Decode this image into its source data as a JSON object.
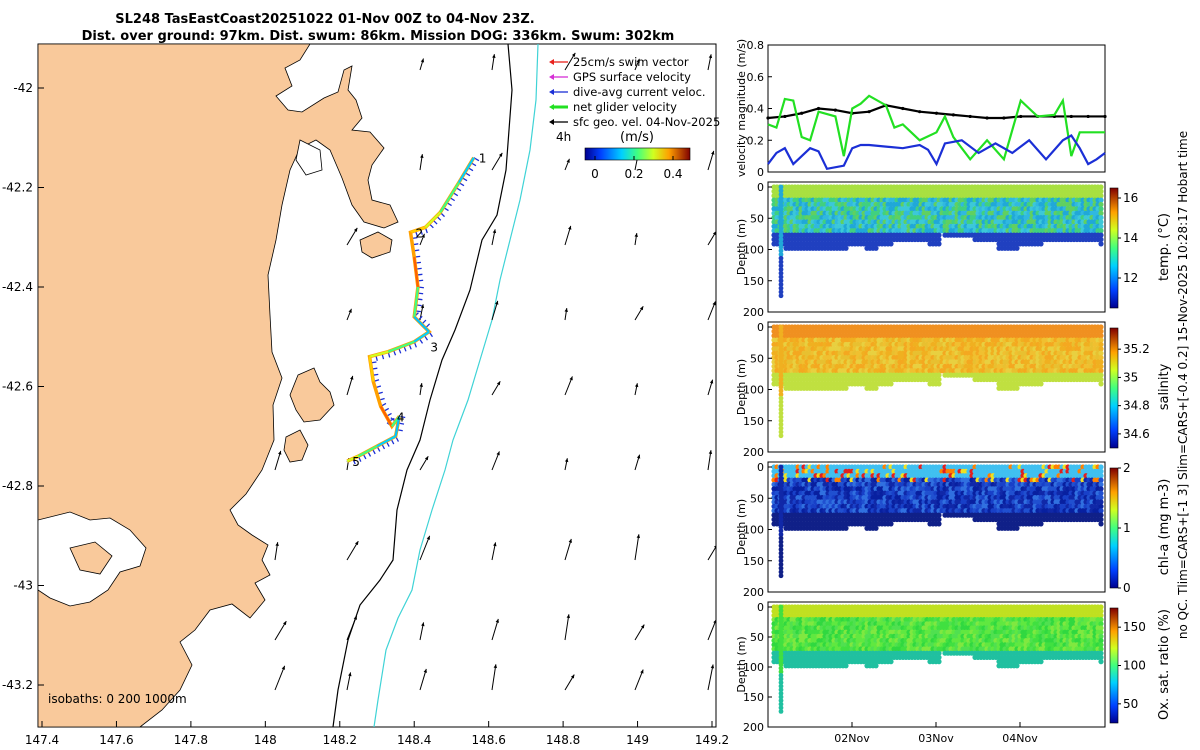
{
  "title_line1": "SL248 TasEastCoast20251022 01-Nov 00Z to 04-Nov 23Z.",
  "title_line2": "Dist. over ground: 97km. Dist. swum: 86km. Mission DOG: 336km. Swum: 302km",
  "side_note": "no QC. Tlim=CARS+[-1 3] Slim=CARS+[-0.4 0.2] 15-Nov-2025 10:28:17 Hobart time",
  "colors": {
    "land": "#f9c99b",
    "isobath_200": "#000000",
    "isobath_1000": "#3fd3d6",
    "swim_vector": "#e8221d",
    "gps_velocity": "#d630d6",
    "dive_current": "#1b2fd6",
    "net_velocity": "#22e022",
    "sfc_geo": "#000000"
  },
  "map": {
    "xticks": [
      "147.4",
      "147.6",
      "147.8",
      "148",
      "148.2",
      "148.4",
      "148.6",
      "148.8",
      "149",
      "149.2"
    ],
    "yticks": [
      "-42",
      "-42.2",
      "-42.4",
      "-42.6",
      "-42.8",
      "-43",
      "-43.2"
    ],
    "isobaths_label": "isobaths: 0   200  1000m",
    "time_step_label": "4h",
    "colorbar_unit": "(m/s)",
    "colorbar_ticks": [
      "0",
      "0.2",
      "0.4"
    ],
    "legend": [
      {
        "label": "25cm/s swim vector",
        "color": "#e8221d"
      },
      {
        "label": "GPS surface velocity",
        "color": "#d630d6"
      },
      {
        "label": "dive-avg current veloc.",
        "color": "#1b2fd6"
      },
      {
        "label": "net glider velocity",
        "color": "#22e022"
      },
      {
        "label": "sfc geo. vel. 04-Nov-2025",
        "color": "#000000"
      }
    ],
    "waypoints": [
      {
        "label": "1",
        "lon": 148.56,
        "lat": -42.14
      },
      {
        "label": "2",
        "lon": 148.39,
        "lat": -42.29
      },
      {
        "label": "3",
        "lon": 148.43,
        "lat": -42.52
      },
      {
        "label": "4",
        "lon": 148.34,
        "lat": -42.66
      },
      {
        "label": "5",
        "lon": 148.22,
        "lat": -42.75
      }
    ],
    "track_lonlat": [
      [
        148.56,
        -42.14
      ],
      [
        148.52,
        -42.19
      ],
      [
        148.47,
        -42.25
      ],
      [
        148.43,
        -42.28
      ],
      [
        148.39,
        -42.29
      ],
      [
        148.4,
        -42.34
      ],
      [
        148.41,
        -42.4
      ],
      [
        148.4,
        -42.46
      ],
      [
        148.44,
        -42.49
      ],
      [
        148.4,
        -42.51
      ],
      [
        148.33,
        -42.53
      ],
      [
        148.28,
        -42.54
      ],
      [
        148.29,
        -42.59
      ],
      [
        148.31,
        -42.64
      ],
      [
        148.34,
        -42.68
      ],
      [
        148.36,
        -42.66
      ],
      [
        148.35,
        -42.7
      ],
      [
        148.3,
        -42.72
      ],
      [
        148.25,
        -42.74
      ],
      [
        148.22,
        -42.75
      ]
    ]
  },
  "chart_data": [
    {
      "type": "line",
      "title": "",
      "xlabel": "",
      "ylabel": "velocity magnitude (m/s)",
      "ylim": [
        0,
        0.8
      ],
      "yticks": [
        "0",
        "0.2",
        "0.4",
        "0.6",
        "0.8"
      ],
      "x_day_range": [
        0,
        4
      ],
      "series": [
        {
          "name": "sfc geo. vel.",
          "color": "#000000",
          "x": [
            0,
            0.2,
            0.4,
            0.6,
            0.8,
            1.0,
            1.2,
            1.4,
            1.6,
            1.8,
            2.0,
            2.2,
            2.4,
            2.6,
            2.8,
            3.0,
            3.2,
            3.4,
            3.6,
            3.8,
            4.0
          ],
          "y": [
            0.34,
            0.35,
            0.37,
            0.4,
            0.39,
            0.37,
            0.38,
            0.42,
            0.4,
            0.38,
            0.37,
            0.36,
            0.35,
            0.34,
            0.34,
            0.35,
            0.35,
            0.35,
            0.35,
            0.35,
            0.35
          ]
        },
        {
          "name": "net glider velocity",
          "color": "#22e022",
          "x": [
            0,
            0.1,
            0.2,
            0.3,
            0.4,
            0.5,
            0.6,
            0.8,
            0.9,
            1.0,
            1.1,
            1.2,
            1.4,
            1.5,
            1.6,
            1.8,
            2.0,
            2.1,
            2.2,
            2.4,
            2.6,
            2.8,
            3.0,
            3.1,
            3.2,
            3.4,
            3.5,
            3.6,
            3.7,
            3.8,
            4.0
          ],
          "y": [
            0.3,
            0.28,
            0.46,
            0.45,
            0.22,
            0.2,
            0.38,
            0.35,
            0.1,
            0.4,
            0.43,
            0.48,
            0.42,
            0.28,
            0.3,
            0.2,
            0.25,
            0.35,
            0.22,
            0.08,
            0.2,
            0.08,
            0.45,
            0.4,
            0.35,
            0.36,
            0.45,
            0.1,
            0.25,
            0.25,
            0.25
          ]
        },
        {
          "name": "dive-avg current veloc.",
          "color": "#1b2fd6",
          "x": [
            0,
            0.1,
            0.2,
            0.3,
            0.5,
            0.6,
            0.7,
            0.9,
            1.0,
            1.1,
            1.2,
            1.4,
            1.6,
            1.8,
            1.9,
            2.0,
            2.1,
            2.3,
            2.5,
            2.7,
            2.9,
            3.1,
            3.3,
            3.5,
            3.6,
            3.7,
            3.8,
            3.9,
            4.0
          ],
          "y": [
            0.05,
            0.12,
            0.15,
            0.05,
            0.15,
            0.13,
            0.02,
            0.04,
            0.15,
            0.17,
            0.17,
            0.16,
            0.15,
            0.17,
            0.14,
            0.05,
            0.18,
            0.2,
            0.12,
            0.18,
            0.12,
            0.2,
            0.08,
            0.2,
            0.23,
            0.15,
            0.05,
            0.08,
            0.12
          ]
        }
      ]
    },
    {
      "type": "scatter",
      "xlabel": "",
      "ylabel": "Depth (m)",
      "ylim": [
        200,
        0
      ],
      "yticks": [
        "0",
        "50",
        "100",
        "150",
        "200"
      ],
      "colorbar_label": "temp. (°C)",
      "colorbar_ticks": [
        "12",
        "14",
        "16"
      ],
      "clim": [
        10.5,
        16.5
      ]
    },
    {
      "type": "scatter",
      "xlabel": "",
      "ylabel": "Depth (m)",
      "ylim": [
        200,
        0
      ],
      "yticks": [
        "0",
        "50",
        "100",
        "150",
        "200"
      ],
      "colorbar_label": "salinity",
      "colorbar_ticks": [
        "34.6",
        "34.8",
        "35",
        "35.2"
      ],
      "clim": [
        34.5,
        35.35
      ]
    },
    {
      "type": "scatter",
      "xlabel": "",
      "ylabel": "Depth (m)",
      "ylim": [
        200,
        0
      ],
      "yticks": [
        "0",
        "50",
        "100",
        "150",
        "200"
      ],
      "colorbar_label": "chl-a (mg m-3)",
      "colorbar_ticks": [
        "0",
        "1",
        "2"
      ],
      "clim": [
        0,
        2
      ]
    },
    {
      "type": "scatter",
      "xlabel": "",
      "ylabel": "Depth (m)",
      "ylim": [
        200,
        0
      ],
      "yticks": [
        "0",
        "50",
        "100",
        "150",
        "200"
      ],
      "xticks": [
        "02Nov",
        "03Nov",
        "04Nov"
      ],
      "colorbar_label": "Ox. sat. ratio (%)",
      "colorbar_ticks": [
        "50",
        "100",
        "150"
      ],
      "clim": [
        25,
        175
      ]
    }
  ]
}
